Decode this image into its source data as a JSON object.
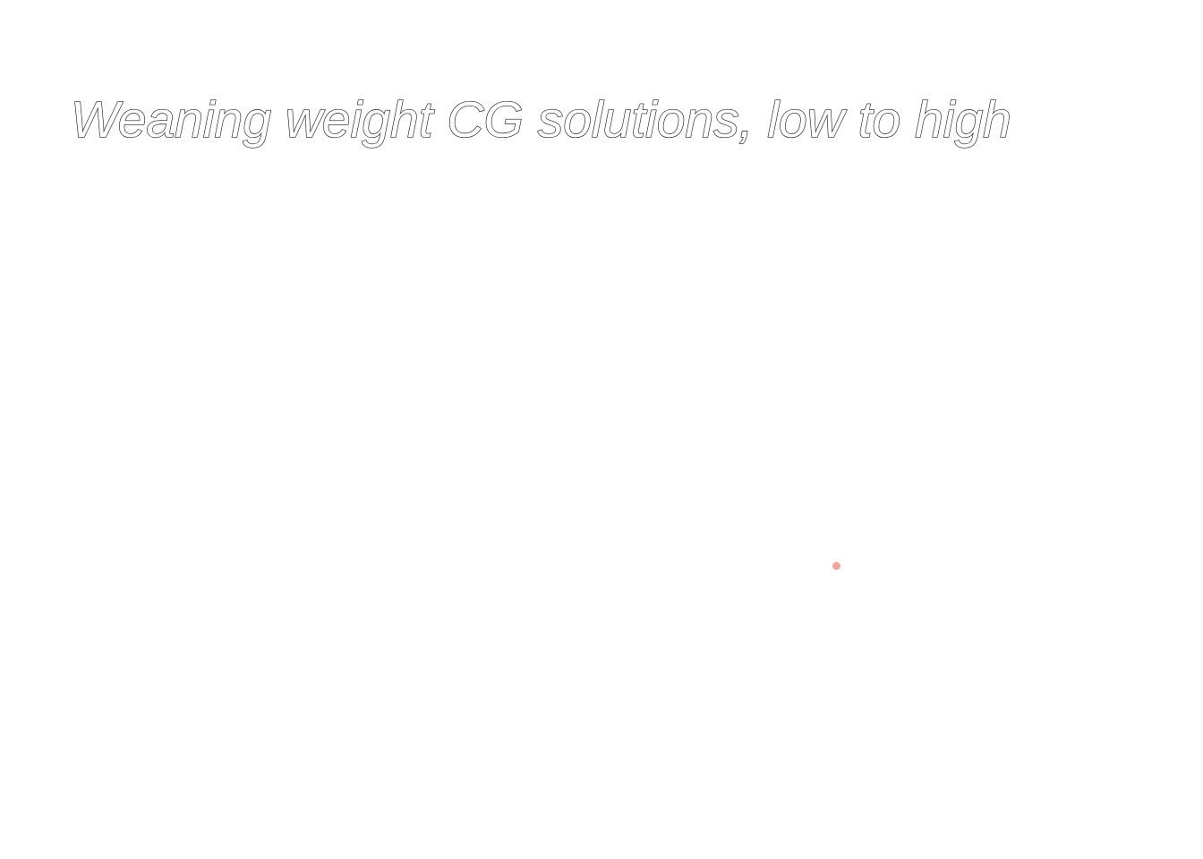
{
  "title": "Weaning weight CG solutions, low to high",
  "colors": {
    "background": "#ffffff",
    "title_stroke": "#1a1a1a",
    "point": "#f4a59b"
  }
}
